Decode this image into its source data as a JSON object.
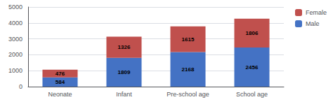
{
  "chart_data": {
    "type": "bar",
    "categories": [
      "Neonate",
      "Infant",
      "Pre-school age",
      "School age"
    ],
    "series": [
      {
        "name": "Male",
        "color": "#4472C4",
        "values": [
          584,
          1809,
          2168,
          2456
        ]
      },
      {
        "name": "Female",
        "color": "#C0504D",
        "values": [
          476,
          1326,
          1615,
          1806
        ]
      }
    ],
    "stacked": true,
    "data_labels": true,
    "ylim": [
      0,
      5000
    ],
    "yticks": [
      0,
      1000,
      2000,
      3000,
      4000,
      5000
    ],
    "grid": true,
    "legend": "upper right"
  }
}
